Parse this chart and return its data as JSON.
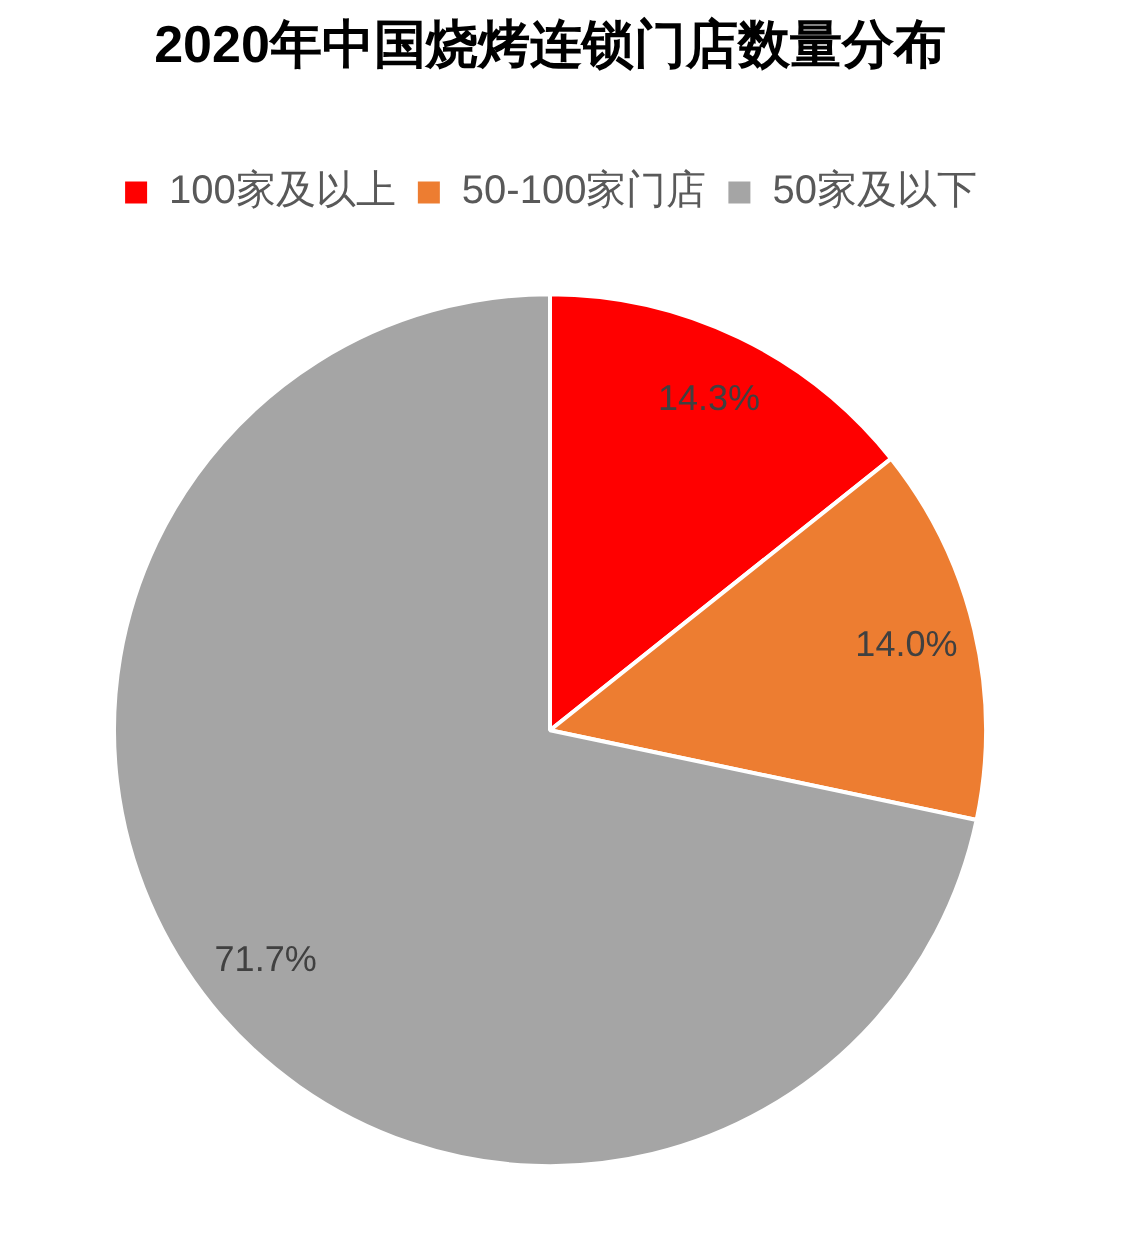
{
  "chart_data": {
    "type": "pie",
    "title": "2020年中国烧烤连锁门店数量分布",
    "categories": [
      "100家及以上",
      "50-100家门店",
      "50家及以下"
    ],
    "values": [
      14.3,
      14.0,
      71.7
    ],
    "colors": [
      "#ff0000",
      "#ed7d31",
      "#a5a5a5"
    ],
    "value_labels": [
      "14.3%",
      "14.0%",
      "71.7%"
    ],
    "legend": "top"
  }
}
